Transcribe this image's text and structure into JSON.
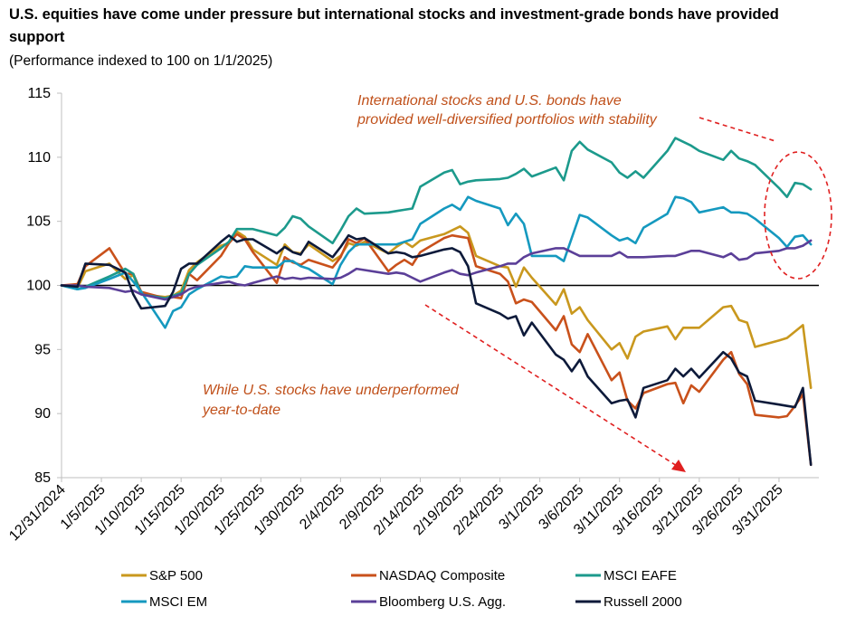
{
  "title": "U.S. equities have come under pressure but international stocks and investment-grade bonds have provided support",
  "subtitle": "(Performance indexed to 100 on 1/1/2025)",
  "chart_data": {
    "type": "line",
    "title": "U.S. equities have come under pressure but international stocks and investment-grade bonds have provided support",
    "subtitle": "(Performance indexed to 100 on 1/1/2025)",
    "xlabel": "",
    "ylabel": "",
    "ylim": [
      85,
      115
    ],
    "yticks": [
      85,
      90,
      95,
      100,
      105,
      110,
      115
    ],
    "x_tick_labels": [
      "12/31/2024",
      "1/5/2025",
      "1/10/2025",
      "1/15/2025",
      "1/20/2025",
      "1/25/2025",
      "1/30/2025",
      "2/4/2025",
      "2/9/2025",
      "2/14/2025",
      "2/19/2025",
      "2/24/2025",
      "3/1/2025",
      "3/6/2025",
      "3/11/2025",
      "3/16/2025",
      "3/21/2025",
      "3/26/2025",
      "3/31/2025"
    ],
    "x_range_days": [
      0,
      95
    ],
    "baseline": 100,
    "legend_position": "bottom",
    "series": [
      {
        "name": "S&P 500",
        "color": "#c9981e",
        "x": [
          0,
          2,
          3,
          6,
          8,
          9,
          10,
          13,
          14,
          15,
          16,
          17,
          20,
          21,
          22,
          23,
          24,
          27,
          28,
          29,
          30,
          31,
          34,
          35,
          36,
          37,
          38,
          41,
          42,
          43,
          44,
          45,
          48,
          49,
          50,
          51,
          52,
          55,
          56,
          57,
          58,
          59,
          62,
          63,
          64,
          65,
          66,
          69,
          70,
          71,
          72,
          73,
          76,
          77,
          78,
          79,
          80,
          83,
          84,
          85,
          86,
          87,
          90,
          91,
          92,
          93,
          94
        ],
        "values": [
          100,
          99.8,
          101.1,
          101.7,
          100.5,
          100.8,
          99.3,
          99.1,
          99.2,
          99.6,
          101.2,
          101.8,
          103.1,
          103.3,
          104.2,
          103.8,
          102.8,
          101.6,
          103.2,
          102.6,
          102.5,
          103.2,
          101.9,
          102.3,
          103.3,
          103.1,
          103.4,
          102.5,
          103.0,
          103.4,
          103.0,
          103.5,
          104.0,
          104.3,
          104.6,
          104.1,
          102.3,
          101.5,
          101.4,
          99.9,
          101.4,
          100.6,
          98.5,
          99.7,
          97.8,
          98.3,
          97.3,
          95.0,
          95.5,
          94.3,
          96.0,
          96.4,
          96.8,
          95.8,
          96.7,
          96.7,
          96.7,
          98.3,
          98.4,
          97.3,
          97.1,
          95.2,
          95.7,
          95.9,
          96.4,
          96.9,
          92.0
        ]
      },
      {
        "name": "NASDAQ Composite",
        "color": "#c9511b",
        "x": [
          0,
          2,
          3,
          6,
          8,
          9,
          10,
          13,
          14,
          15,
          16,
          17,
          20,
          21,
          22,
          23,
          24,
          27,
          28,
          29,
          30,
          31,
          34,
          35,
          36,
          37,
          38,
          41,
          42,
          43,
          44,
          45,
          48,
          49,
          50,
          51,
          52,
          55,
          56,
          57,
          58,
          59,
          62,
          63,
          64,
          65,
          66,
          69,
          70,
          71,
          72,
          73,
          76,
          77,
          78,
          79,
          80,
          83,
          84,
          85,
          86,
          87,
          90,
          91,
          92,
          93,
          94
        ],
        "values": [
          100,
          100.1,
          101.5,
          102.9,
          100.9,
          100.9,
          99.5,
          99.0,
          99.1,
          99.0,
          100.9,
          100.4,
          102.3,
          103.3,
          104.0,
          103.6,
          102.6,
          100.2,
          102.2,
          101.8,
          101.6,
          102.0,
          101.4,
          102.2,
          103.6,
          103.3,
          103.7,
          101.1,
          101.6,
          102.0,
          101.6,
          102.6,
          103.7,
          103.9,
          103.8,
          103.7,
          101.5,
          100.9,
          100.3,
          98.6,
          98.9,
          98.7,
          96.5,
          97.6,
          95.4,
          94.8,
          96.2,
          92.6,
          93.2,
          91.0,
          90.4,
          91.6,
          92.3,
          92.4,
          90.8,
          92.2,
          91.7,
          94.2,
          94.8,
          93.1,
          92.3,
          89.9,
          89.7,
          89.8,
          90.6,
          91.5,
          86.0
        ]
      },
      {
        "name": "MSCI EAFE",
        "color": "#1c9a8c",
        "x": [
          0,
          2,
          3,
          6,
          8,
          9,
          10,
          13,
          14,
          15,
          16,
          17,
          20,
          21,
          22,
          23,
          24,
          27,
          28,
          29,
          30,
          31,
          34,
          35,
          36,
          37,
          38,
          41,
          42,
          43,
          44,
          45,
          48,
          49,
          50,
          51,
          52,
          55,
          56,
          57,
          58,
          59,
          62,
          63,
          64,
          65,
          66,
          69,
          70,
          71,
          72,
          73,
          76,
          77,
          78,
          79,
          80,
          83,
          84,
          85,
          86,
          87,
          90,
          91,
          92,
          93,
          94
        ],
        "values": [
          100,
          99.7,
          99.9,
          100.7,
          101.3,
          100.9,
          99.3,
          99.0,
          99.2,
          99.4,
          100.9,
          101.6,
          102.9,
          103.4,
          104.4,
          104.4,
          104.4,
          103.9,
          104.5,
          105.4,
          105.2,
          104.6,
          103.3,
          104.3,
          105.4,
          106.0,
          105.6,
          105.7,
          105.8,
          105.9,
          106.0,
          107.7,
          108.8,
          109.0,
          107.9,
          108.1,
          108.2,
          108.3,
          108.4,
          108.7,
          109.1,
          108.5,
          109.2,
          108.2,
          110.5,
          111.2,
          110.6,
          109.6,
          108.8,
          108.4,
          108.9,
          108.4,
          110.5,
          111.5,
          111.2,
          110.9,
          110.5,
          109.8,
          110.5,
          109.9,
          109.7,
          109.4,
          107.6,
          106.9,
          108.0,
          107.9,
          107.5
        ]
      },
      {
        "name": "MSCI EM",
        "color": "#1599bf",
        "x": [
          0,
          2,
          3,
          6,
          8,
          9,
          10,
          13,
          14,
          15,
          16,
          17,
          20,
          21,
          22,
          23,
          24,
          27,
          28,
          29,
          30,
          31,
          34,
          35,
          36,
          37,
          38,
          41,
          42,
          43,
          44,
          45,
          48,
          49,
          50,
          51,
          52,
          55,
          56,
          57,
          58,
          59,
          62,
          63,
          64,
          65,
          66,
          69,
          70,
          71,
          72,
          73,
          76,
          77,
          78,
          79,
          80,
          83,
          84,
          85,
          86,
          87,
          90,
          91,
          92,
          93,
          94
        ],
        "values": [
          100,
          99.7,
          99.8,
          100.5,
          101.0,
          100.3,
          99.5,
          96.7,
          98.0,
          98.3,
          99.3,
          99.7,
          100.7,
          100.6,
          100.7,
          101.5,
          101.4,
          101.4,
          101.9,
          101.9,
          101.5,
          101.3,
          100.1,
          101.6,
          102.6,
          103.2,
          103.2,
          103.2,
          103.2,
          103.4,
          103.6,
          104.8,
          106.0,
          106.3,
          105.9,
          106.9,
          106.6,
          106.0,
          104.7,
          105.6,
          104.8,
          102.3,
          102.3,
          101.9,
          103.7,
          105.5,
          105.3,
          103.9,
          103.5,
          103.7,
          103.3,
          104.5,
          105.6,
          106.9,
          106.8,
          106.5,
          105.7,
          106.1,
          105.7,
          105.7,
          105.6,
          105.2,
          103.7,
          103.0,
          103.8,
          103.9,
          103.2
        ]
      },
      {
        "name": "Bloomberg U.S. Agg.",
        "color": "#5b3f98",
        "x": [
          0,
          2,
          3,
          6,
          8,
          9,
          10,
          13,
          14,
          15,
          16,
          17,
          20,
          21,
          22,
          23,
          24,
          27,
          28,
          29,
          30,
          31,
          34,
          35,
          36,
          37,
          38,
          41,
          42,
          43,
          44,
          45,
          48,
          49,
          50,
          51,
          52,
          55,
          56,
          57,
          58,
          59,
          62,
          63,
          64,
          65,
          66,
          69,
          70,
          71,
          72,
          73,
          76,
          77,
          78,
          79,
          80,
          83,
          84,
          85,
          86,
          87,
          90,
          91,
          92,
          93,
          94
        ],
        "values": [
          100,
          100,
          99.9,
          99.8,
          99.5,
          99.6,
          99.3,
          98.9,
          99.1,
          99.3,
          99.7,
          99.9,
          100.2,
          100.3,
          100.1,
          100.0,
          100.2,
          100.7,
          100.5,
          100.6,
          100.5,
          100.6,
          100.5,
          100.6,
          100.9,
          101.3,
          101.2,
          100.9,
          101.0,
          100.9,
          100.6,
          100.3,
          101.0,
          101.2,
          100.9,
          100.8,
          101.0,
          101.5,
          101.7,
          101.7,
          102.2,
          102.5,
          102.9,
          102.9,
          102.6,
          102.3,
          102.3,
          102.3,
          102.6,
          102.2,
          102.2,
          102.2,
          102.3,
          102.3,
          102.5,
          102.7,
          102.7,
          102.2,
          102.5,
          102.0,
          102.1,
          102.5,
          102.7,
          102.9,
          102.9,
          103.1,
          103.5
        ]
      },
      {
        "name": "Russell 2000",
        "color": "#0d1a3a",
        "x": [
          0,
          2,
          3,
          6,
          8,
          9,
          10,
          13,
          14,
          15,
          16,
          17,
          20,
          21,
          22,
          23,
          24,
          27,
          28,
          29,
          30,
          31,
          34,
          35,
          36,
          37,
          38,
          41,
          42,
          43,
          44,
          45,
          48,
          49,
          50,
          51,
          52,
          55,
          56,
          57,
          58,
          59,
          62,
          63,
          64,
          65,
          66,
          69,
          70,
          71,
          72,
          73,
          76,
          77,
          78,
          79,
          80,
          83,
          84,
          85,
          86,
          87,
          90,
          91,
          92,
          93,
          94
        ],
        "values": [
          100,
          99.9,
          101.7,
          101.6,
          101.0,
          99.3,
          98.2,
          98.4,
          99.5,
          101.3,
          101.7,
          101.7,
          103.4,
          103.9,
          103.4,
          103.6,
          103.6,
          102.5,
          103.0,
          102.6,
          102.4,
          103.4,
          102.2,
          103.0,
          103.9,
          103.6,
          103.7,
          102.5,
          102.6,
          102.5,
          102.2,
          102.3,
          102.8,
          102.9,
          102.6,
          101.5,
          98.6,
          97.8,
          97.4,
          97.6,
          96.1,
          97.1,
          94.6,
          94.2,
          93.3,
          94.2,
          92.9,
          90.8,
          91.0,
          91.1,
          89.7,
          92.0,
          92.6,
          93.5,
          92.9,
          93.5,
          92.8,
          94.8,
          94.3,
          93.2,
          92.9,
          91.0,
          90.7,
          90.6,
          90.5,
          92.0,
          86.0
        ]
      }
    ],
    "annotations": [
      {
        "lines": [
          "International stocks and U.S. bonds have",
          "provided well-diversified portfolios with stability"
        ]
      },
      {
        "lines": [
          "While U.S. stocks have underperformed",
          "year-to-date"
        ]
      }
    ]
  }
}
